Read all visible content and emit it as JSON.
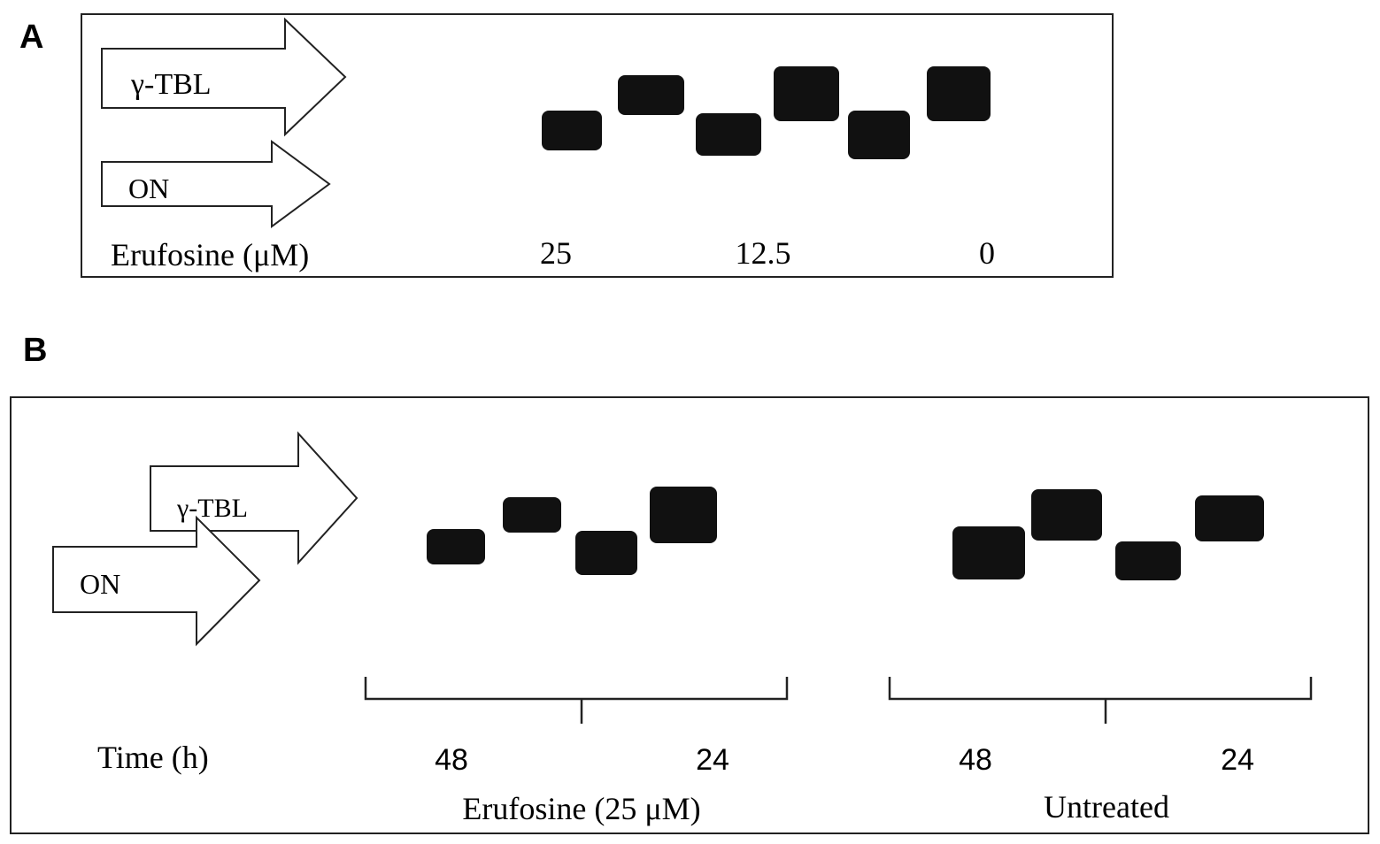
{
  "panels": [
    {
      "label": "A",
      "arrows": [
        "γ-TBL",
        "ON"
      ],
      "row_label": "Erufosine (μM)",
      "lane_labels": [
        "25",
        "12.5",
        "0"
      ]
    },
    {
      "label": "B",
      "arrows": [
        "γ-TBL",
        "ON"
      ],
      "row_label": "Time (h)",
      "lane_labels": [
        "48",
        "24",
        "48",
        "24"
      ],
      "group_labels": [
        "Erufosine (25 μM)",
        "Untreated"
      ]
    }
  ]
}
